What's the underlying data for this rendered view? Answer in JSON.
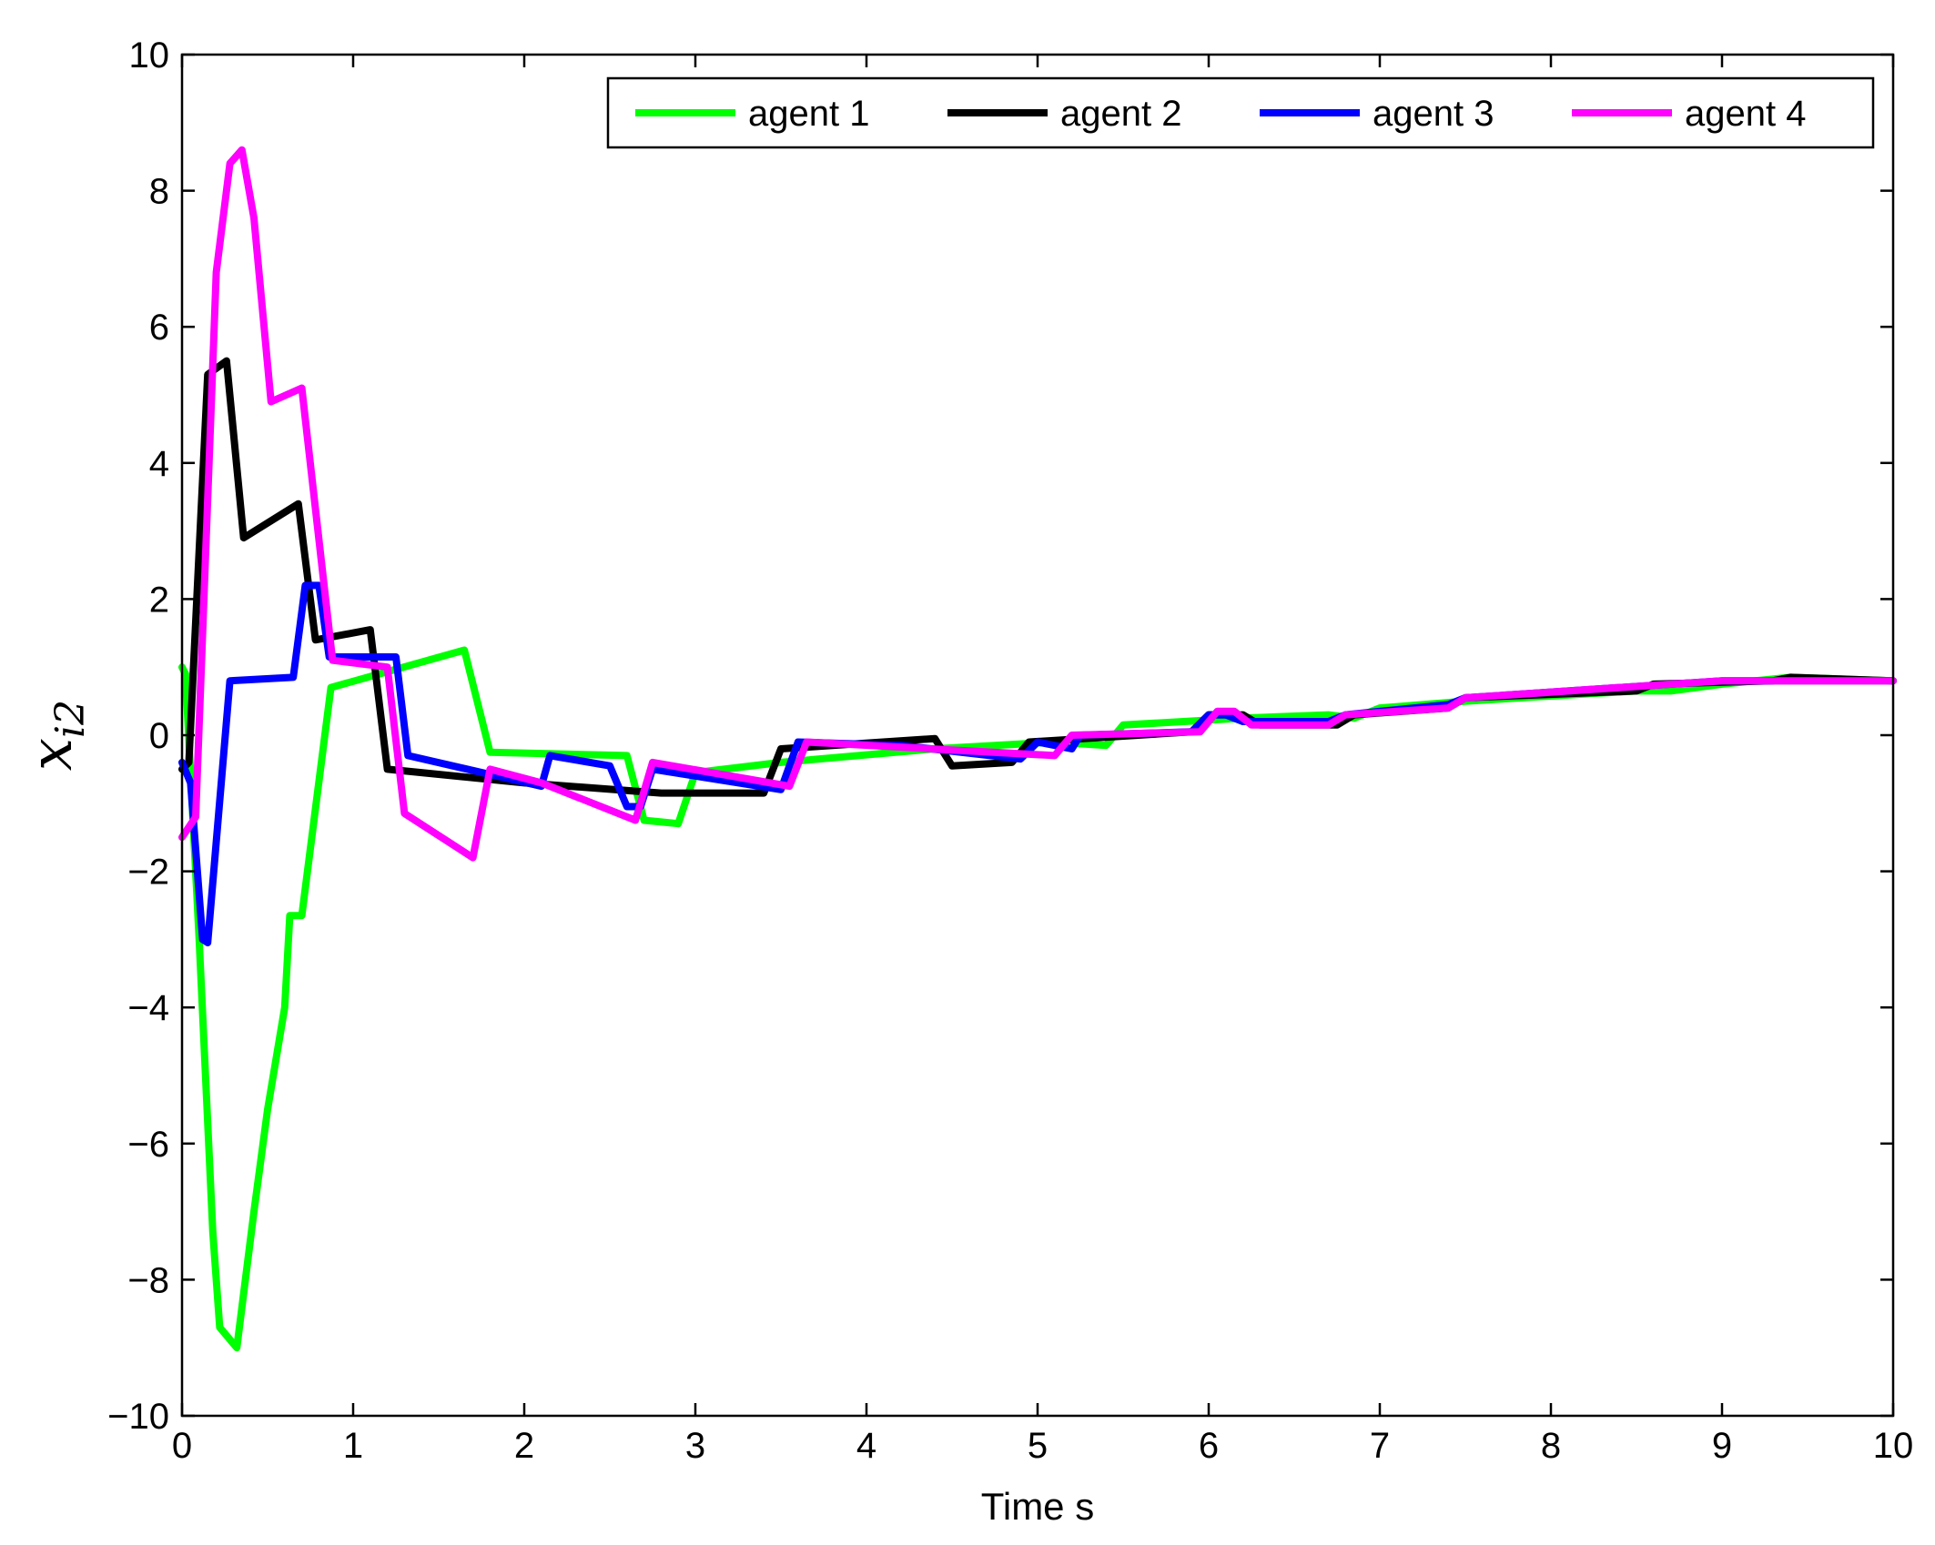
{
  "chart_data": {
    "type": "line",
    "title": "",
    "xlabel": "Time s",
    "ylabel_main": "x",
    "ylabel_sub": "i2",
    "xlim": [
      0,
      10
    ],
    "ylim": [
      -10,
      10
    ],
    "xticks": [
      0,
      1,
      2,
      3,
      4,
      5,
      6,
      7,
      8,
      9,
      10
    ],
    "yticks": [
      -10,
      -8,
      -6,
      -4,
      -2,
      0,
      2,
      4,
      6,
      8,
      10
    ],
    "xtick_labels": [
      "0",
      "1",
      "2",
      "3",
      "4",
      "5",
      "6",
      "7",
      "8",
      "9",
      "10"
    ],
    "ytick_labels": [
      "−10",
      "−8",
      "−6",
      "−4",
      "−2",
      "0",
      "2",
      "4",
      "6",
      "8",
      "10"
    ],
    "grid": false,
    "legend_position": "top-right",
    "series": [
      {
        "name": "agent 1",
        "color": "#00ff00",
        "points": [
          [
            0,
            1.0
          ],
          [
            0.02,
            0.9
          ],
          [
            0.1,
            -3.0
          ],
          [
            0.18,
            -7.3
          ],
          [
            0.22,
            -8.7
          ],
          [
            0.32,
            -9.0
          ],
          [
            0.42,
            -7.0
          ],
          [
            0.5,
            -5.5
          ],
          [
            0.6,
            -4.0
          ],
          [
            0.63,
            -2.65
          ],
          [
            0.7,
            -2.65
          ],
          [
            0.87,
            0.7
          ],
          [
            1.65,
            1.25
          ],
          [
            1.8,
            -0.25
          ],
          [
            2.6,
            -0.3
          ],
          [
            2.7,
            -1.25
          ],
          [
            2.9,
            -1.3
          ],
          [
            3.0,
            -0.55
          ],
          [
            3.5,
            -0.4
          ],
          [
            4.4,
            -0.2
          ],
          [
            5.1,
            -0.1
          ],
          [
            5.4,
            -0.15
          ],
          [
            5.5,
            0.15
          ],
          [
            6.2,
            0.25
          ],
          [
            6.7,
            0.3
          ],
          [
            6.85,
            0.25
          ],
          [
            7.0,
            0.4
          ],
          [
            7.5,
            0.5
          ],
          [
            8.5,
            0.65
          ],
          [
            8.7,
            0.65
          ],
          [
            9.0,
            0.75
          ],
          [
            9.4,
            0.85
          ],
          [
            10.0,
            0.8
          ]
        ]
      },
      {
        "name": "agent 2",
        "color": "#000000",
        "points": [
          [
            0,
            -0.5
          ],
          [
            0.04,
            -0.4
          ],
          [
            0.15,
            5.3
          ],
          [
            0.26,
            5.5
          ],
          [
            0.36,
            2.9
          ],
          [
            0.68,
            3.4
          ],
          [
            0.78,
            1.4
          ],
          [
            1.1,
            1.55
          ],
          [
            1.2,
            -0.5
          ],
          [
            2.0,
            -0.7
          ],
          [
            2.8,
            -0.85
          ],
          [
            3.4,
            -0.85
          ],
          [
            3.5,
            -0.2
          ],
          [
            4.4,
            -0.05
          ],
          [
            4.5,
            -0.45
          ],
          [
            4.85,
            -0.4
          ],
          [
            4.95,
            -0.1
          ],
          [
            5.9,
            0.05
          ],
          [
            6.0,
            0.3
          ],
          [
            6.2,
            0.3
          ],
          [
            6.3,
            0.15
          ],
          [
            6.75,
            0.15
          ],
          [
            6.85,
            0.3
          ],
          [
            7.4,
            0.4
          ],
          [
            7.5,
            0.55
          ],
          [
            8.5,
            0.65
          ],
          [
            8.6,
            0.75
          ],
          [
            9.3,
            0.8
          ],
          [
            9.4,
            0.85
          ],
          [
            10.0,
            0.8
          ]
        ]
      },
      {
        "name": "agent 3",
        "color": "#0000ff",
        "points": [
          [
            0,
            -0.4
          ],
          [
            0.05,
            -0.7
          ],
          [
            0.12,
            -3.0
          ],
          [
            0.15,
            -3.05
          ],
          [
            0.28,
            0.8
          ],
          [
            0.65,
            0.85
          ],
          [
            0.72,
            2.2
          ],
          [
            0.8,
            2.2
          ],
          [
            0.86,
            1.15
          ],
          [
            1.25,
            1.15
          ],
          [
            1.32,
            -0.3
          ],
          [
            2.1,
            -0.75
          ],
          [
            2.15,
            -0.3
          ],
          [
            2.5,
            -0.45
          ],
          [
            2.6,
            -1.05
          ],
          [
            2.68,
            -1.05
          ],
          [
            2.75,
            -0.5
          ],
          [
            3.5,
            -0.8
          ],
          [
            3.6,
            -0.1
          ],
          [
            4.2,
            -0.15
          ],
          [
            4.9,
            -0.35
          ],
          [
            5.0,
            -0.1
          ],
          [
            5.2,
            -0.2
          ],
          [
            5.25,
            0.0
          ],
          [
            5.9,
            0.05
          ],
          [
            6.0,
            0.3
          ],
          [
            6.1,
            0.3
          ],
          [
            6.2,
            0.2
          ],
          [
            6.7,
            0.2
          ],
          [
            6.8,
            0.3
          ],
          [
            7.4,
            0.45
          ],
          [
            7.5,
            0.55
          ],
          [
            9.0,
            0.8
          ],
          [
            10.0,
            0.8
          ]
        ]
      },
      {
        "name": "agent 4",
        "color": "#ff00ff",
        "points": [
          [
            0,
            -1.5
          ],
          [
            0.08,
            -1.2
          ],
          [
            0.2,
            6.8
          ],
          [
            0.28,
            8.4
          ],
          [
            0.35,
            8.6
          ],
          [
            0.42,
            7.6
          ],
          [
            0.52,
            4.9
          ],
          [
            0.7,
            5.1
          ],
          [
            0.88,
            1.1
          ],
          [
            1.2,
            1.0
          ],
          [
            1.3,
            -1.15
          ],
          [
            1.7,
            -1.8
          ],
          [
            1.8,
            -0.5
          ],
          [
            2.1,
            -0.7
          ],
          [
            2.65,
            -1.25
          ],
          [
            2.75,
            -0.4
          ],
          [
            3.55,
            -0.75
          ],
          [
            3.65,
            -0.1
          ],
          [
            5.1,
            -0.3
          ],
          [
            5.2,
            0.0
          ],
          [
            5.95,
            0.05
          ],
          [
            6.05,
            0.35
          ],
          [
            6.15,
            0.35
          ],
          [
            6.25,
            0.15
          ],
          [
            6.7,
            0.15
          ],
          [
            6.8,
            0.3
          ],
          [
            7.4,
            0.4
          ],
          [
            7.5,
            0.55
          ],
          [
            9.0,
            0.8
          ],
          [
            10.0,
            0.8
          ]
        ]
      }
    ]
  }
}
